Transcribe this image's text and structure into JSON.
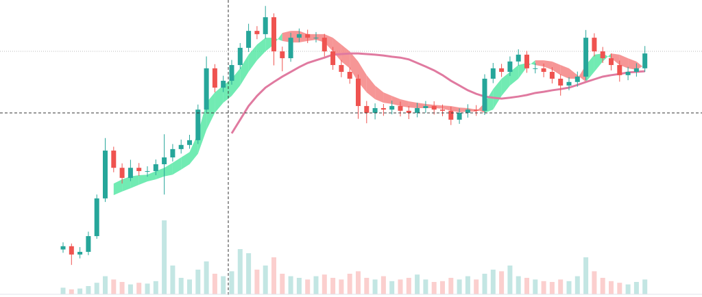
{
  "chart_data": {
    "type": "candlestick",
    "ylim": [
      0,
      100
    ],
    "volume_ylim": [
      0,
      100
    ],
    "up_color": "#26a69a",
    "down_color": "#ef5350",
    "ribbon_up_color": "#4ee6a0",
    "ribbon_down_color": "#f47c7c",
    "ma_color": "#e07aa0",
    "open": [
      16.0,
      17.1,
      14.3,
      15.2,
      20.5,
      33.2,
      49.3,
      43.5,
      40.1,
      43.5,
      42.4,
      42.4,
      44.7,
      47.0,
      49.8,
      51.2,
      52.8,
      63.1,
      77.0,
      70.5,
      72.8,
      78.1,
      83.9,
      89.6,
      88.5,
      94.2,
      82.7,
      80.4,
      87.3,
      88.5,
      87.3,
      87.3,
      82.7,
      78.1,
      75.8,
      73.5,
      64.3,
      62.0,
      63.6,
      63.1,
      64.3,
      62.7,
      62.0,
      63.6,
      64.3,
      63.1,
      62.7,
      59.7,
      62.0,
      63.1,
      62.7,
      73.5,
      77.0,
      75.8,
      79.3,
      81.6,
      77.0,
      77.0,
      75.8,
      73.5,
      71.2,
      72.4,
      74.2,
      87.3,
      82.7,
      80.4,
      78.1,
      74.7,
      75.8,
      77.0
    ],
    "high": [
      18.4,
      18.0,
      16.8,
      22.0,
      34.5,
      53.5,
      50.6,
      45.0,
      46.2,
      45.1,
      44.0,
      46.3,
      54.8,
      51.5,
      53.0,
      54.6,
      64.8,
      81.0,
      78.4,
      74.5,
      79.8,
      85.5,
      92.0,
      91.2,
      98.0,
      95.5,
      84.3,
      89.0,
      90.4,
      90.0,
      89.2,
      88.6,
      84.2,
      79.8,
      77.3,
      74.9,
      66.0,
      65.2,
      65.0,
      66.1,
      65.8,
      64.3,
      65.4,
      66.0,
      65.9,
      64.8,
      64.1,
      63.5,
      64.9,
      64.6,
      75.0,
      78.8,
      78.5,
      81.0,
      83.4,
      82.9,
      78.7,
      78.6,
      77.4,
      75.0,
      74.0,
      75.9,
      89.9,
      88.8,
      84.2,
      82.0,
      79.6,
      77.5,
      78.7,
      84.5
    ],
    "low": [
      14.9,
      10.8,
      13.0,
      14.1,
      19.6,
      32.0,
      42.0,
      38.2,
      39.0,
      40.8,
      40.5,
      41.0,
      34.5,
      45.6,
      48.3,
      49.9,
      51.5,
      62.0,
      68.9,
      69.0,
      71.5,
      76.8,
      82.5,
      86.8,
      87.0,
      78.0,
      76.0,
      79.2,
      85.8,
      85.5,
      85.7,
      81.0,
      76.5,
      74.0,
      71.8,
      60.0,
      58.5,
      59.8,
      61.0,
      61.5,
      60.8,
      59.9,
      60.5,
      62.0,
      61.4,
      60.9,
      57.9,
      58.3,
      60.4,
      61.0,
      61.3,
      72.0,
      74.1,
      74.4,
      77.9,
      75.5,
      75.3,
      74.0,
      71.9,
      67.8,
      69.6,
      70.8,
      73.0,
      81.0,
      78.8,
      76.3,
      72.5,
      73.0,
      74.2,
      75.8
    ],
    "close": [
      17.1,
      14.3,
      15.2,
      20.5,
      33.2,
      49.3,
      43.5,
      40.1,
      43.5,
      42.4,
      42.4,
      44.7,
      47.0,
      49.8,
      51.2,
      52.8,
      63.1,
      77.0,
      70.5,
      72.8,
      78.1,
      83.9,
      89.6,
      88.5,
      94.2,
      82.7,
      80.4,
      87.3,
      88.5,
      87.3,
      87.3,
      82.7,
      78.1,
      75.8,
      73.5,
      64.3,
      62.0,
      63.6,
      63.1,
      64.3,
      62.7,
      62.0,
      63.6,
      64.3,
      63.1,
      62.7,
      59.7,
      62.0,
      63.1,
      62.7,
      73.5,
      77.0,
      75.8,
      79.3,
      81.6,
      77.0,
      77.0,
      75.8,
      73.5,
      71.2,
      72.4,
      74.2,
      87.3,
      82.7,
      80.4,
      78.1,
      74.7,
      75.8,
      77.0,
      82.0
    ],
    "volume": [
      8,
      6,
      7,
      10,
      14,
      22,
      18,
      15,
      12,
      14,
      13,
      16,
      90,
      35,
      20,
      18,
      30,
      40,
      25,
      22,
      28,
      55,
      50,
      30,
      35,
      45,
      25,
      22,
      20,
      18,
      22,
      24,
      20,
      18,
      25,
      28,
      20,
      18,
      22,
      16,
      18,
      20,
      24,
      18,
      15,
      16,
      20,
      18,
      22,
      18,
      25,
      30,
      28,
      35,
      22,
      20,
      18,
      16,
      15,
      18,
      16,
      22,
      45,
      28,
      20,
      16,
      14,
      12,
      15,
      18
    ],
    "ribbon_fast": [
      null,
      null,
      null,
      null,
      null,
      null,
      38.2,
      39.6,
      40.6,
      41.0,
      41.2,
      42.4,
      43.5,
      45.2,
      47.0,
      48.8,
      55.1,
      65.4,
      68.9,
      71.2,
      73.5,
      77.0,
      81.6,
      85.0,
      87.3,
      87.3,
      86.2,
      85.7,
      85.7,
      86.2,
      86.6,
      85.7,
      82.7,
      79.3,
      77.0,
      72.4,
      68.9,
      66.6,
      65.4,
      65.0,
      64.3,
      63.8,
      63.6,
      63.6,
      63.6,
      63.4,
      62.7,
      62.2,
      62.4,
      62.4,
      65.4,
      70.0,
      73.5,
      75.8,
      78.1,
      78.8,
      78.1,
      77.6,
      76.5,
      74.7,
      73.5,
      73.5,
      78.1,
      81.6,
      82.0,
      80.4,
      78.1,
      77.0,
      76.5,
      78.1
    ],
    "ribbon_slow": [
      null,
      null,
      null,
      null,
      null,
      null,
      34.3,
      35.5,
      36.6,
      37.8,
      38.9,
      39.6,
      40.6,
      41.2,
      42.9,
      44.7,
      48.2,
      56.2,
      62.0,
      65.4,
      67.7,
      71.2,
      75.8,
      79.7,
      82.7,
      85.0,
      88.9,
      89.6,
      89.6,
      88.5,
      88.5,
      88.5,
      87.3,
      85.0,
      82.7,
      79.3,
      74.7,
      71.2,
      68.9,
      67.7,
      66.6,
      65.9,
      65.4,
      65.0,
      64.7,
      64.5,
      64.3,
      63.8,
      63.6,
      63.1,
      62.0,
      63.1,
      67.7,
      71.2,
      73.5,
      77.4,
      79.7,
      79.7,
      79.3,
      78.1,
      77.0,
      74.7,
      72.4,
      75.8,
      79.3,
      82.0,
      81.6,
      80.4,
      79.3,
      77.0
    ],
    "ma": [
      null,
      null,
      null,
      null,
      null,
      null,
      null,
      null,
      null,
      null,
      null,
      null,
      null,
      null,
      null,
      null,
      null,
      null,
      null,
      null,
      55.1,
      59.7,
      64.3,
      67.7,
      70.5,
      72.4,
      74.2,
      75.8,
      77.4,
      78.8,
      79.7,
      80.6,
      81.6,
      81.8,
      82.0,
      82.0,
      81.8,
      81.6,
      81.3,
      80.9,
      80.6,
      80.0,
      78.8,
      77.6,
      76.3,
      74.7,
      72.8,
      71.2,
      69.6,
      68.4,
      67.5,
      67.1,
      66.8,
      67.1,
      67.5,
      68.0,
      68.7,
      69.1,
      69.6,
      70.0,
      70.5,
      71.4,
      72.4,
      73.3,
      74.2,
      74.7,
      75.1,
      75.6,
      75.8,
      76.0
    ]
  }
}
